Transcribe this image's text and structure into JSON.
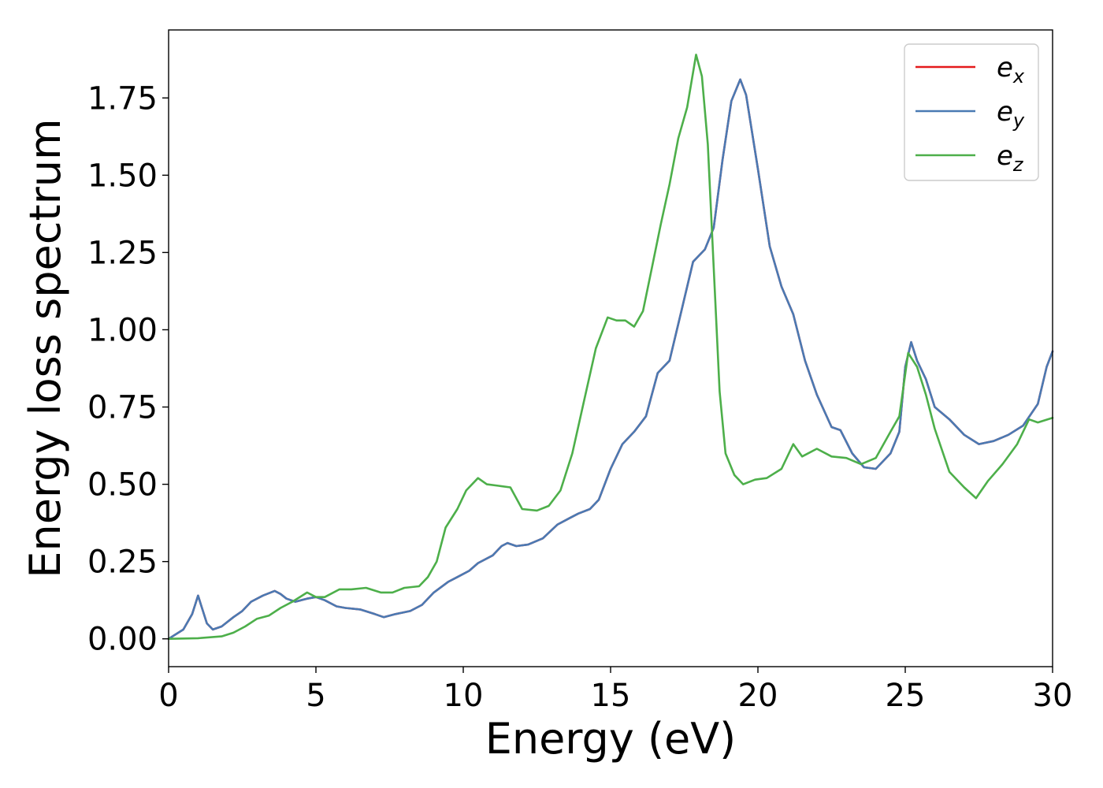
{
  "chart_data": {
    "type": "line",
    "title": "",
    "xlabel": "Energy (eV)",
    "ylabel": "Energy loss spectrum",
    "xlim": [
      0,
      30
    ],
    "ylim": [
      -0.09,
      1.97
    ],
    "xticks": [
      0,
      5,
      10,
      15,
      20,
      25,
      30
    ],
    "xtick_labels": [
      "0",
      "5",
      "10",
      "15",
      "20",
      "25",
      "30"
    ],
    "yticks": [
      0.0,
      0.25,
      0.5,
      0.75,
      1.0,
      1.25,
      1.5,
      1.75
    ],
    "ytick_labels": [
      "0.00",
      "0.25",
      "0.50",
      "0.75",
      "1.00",
      "1.25",
      "1.50",
      "1.75"
    ],
    "grid": false,
    "legend_position": "top-right",
    "series": [
      {
        "name": "e",
        "subscript": "x",
        "color": "#e41a1c",
        "points": [
          [
            0,
            0
          ],
          [
            0.5,
            0.03
          ],
          [
            0.8,
            0.08
          ],
          [
            1.0,
            0.14
          ],
          [
            1.1,
            0.11
          ],
          [
            1.3,
            0.05
          ],
          [
            1.5,
            0.03
          ],
          [
            1.8,
            0.04
          ],
          [
            2.2,
            0.07
          ],
          [
            2.5,
            0.09
          ],
          [
            2.8,
            0.12
          ],
          [
            3.2,
            0.14
          ],
          [
            3.6,
            0.155
          ],
          [
            3.8,
            0.145
          ],
          [
            4.0,
            0.13
          ],
          [
            4.3,
            0.12
          ],
          [
            4.7,
            0.13
          ],
          [
            5.0,
            0.135
          ],
          [
            5.3,
            0.125
          ],
          [
            5.7,
            0.105
          ],
          [
            6.0,
            0.1
          ],
          [
            6.5,
            0.095
          ],
          [
            7.0,
            0.08
          ],
          [
            7.3,
            0.07
          ],
          [
            7.7,
            0.08
          ],
          [
            8.2,
            0.09
          ],
          [
            8.6,
            0.11
          ],
          [
            9.0,
            0.15
          ],
          [
            9.5,
            0.185
          ],
          [
            9.8,
            0.2
          ],
          [
            10.2,
            0.22
          ],
          [
            10.5,
            0.245
          ],
          [
            11.0,
            0.27
          ],
          [
            11.3,
            0.3
          ],
          [
            11.5,
            0.31
          ],
          [
            11.8,
            0.3
          ],
          [
            12.2,
            0.305
          ],
          [
            12.7,
            0.325
          ],
          [
            13.2,
            0.37
          ],
          [
            13.6,
            0.39
          ],
          [
            13.9,
            0.405
          ],
          [
            14.3,
            0.42
          ],
          [
            14.6,
            0.45
          ],
          [
            15.0,
            0.55
          ],
          [
            15.4,
            0.63
          ],
          [
            15.8,
            0.67
          ],
          [
            16.2,
            0.72
          ],
          [
            16.6,
            0.86
          ],
          [
            17.0,
            0.9
          ],
          [
            17.4,
            1.06
          ],
          [
            17.8,
            1.22
          ],
          [
            18.2,
            1.26
          ],
          [
            18.5,
            1.33
          ],
          [
            18.8,
            1.55
          ],
          [
            19.1,
            1.74
          ],
          [
            19.4,
            1.81
          ],
          [
            19.6,
            1.76
          ],
          [
            20.0,
            1.52
          ],
          [
            20.4,
            1.27
          ],
          [
            20.8,
            1.14
          ],
          [
            21.2,
            1.05
          ],
          [
            21.6,
            0.9
          ],
          [
            22.0,
            0.79
          ],
          [
            22.5,
            0.685
          ],
          [
            22.8,
            0.675
          ],
          [
            23.2,
            0.6
          ],
          [
            23.6,
            0.555
          ],
          [
            24.0,
            0.55
          ],
          [
            24.5,
            0.6
          ],
          [
            24.8,
            0.67
          ],
          [
            25.0,
            0.88
          ],
          [
            25.2,
            0.96
          ],
          [
            25.4,
            0.9
          ],
          [
            25.7,
            0.84
          ],
          [
            26.0,
            0.75
          ],
          [
            26.5,
            0.71
          ],
          [
            27.0,
            0.66
          ],
          [
            27.5,
            0.63
          ],
          [
            28.0,
            0.64
          ],
          [
            28.5,
            0.66
          ],
          [
            29.0,
            0.69
          ],
          [
            29.5,
            0.76
          ],
          [
            29.8,
            0.88
          ],
          [
            30.0,
            0.93
          ]
        ]
      },
      {
        "name": "e",
        "subscript": "y",
        "color": "#4a7ab3",
        "points": [
          [
            0,
            0
          ],
          [
            0.5,
            0.03
          ],
          [
            0.8,
            0.08
          ],
          [
            1.0,
            0.14
          ],
          [
            1.1,
            0.11
          ],
          [
            1.3,
            0.05
          ],
          [
            1.5,
            0.03
          ],
          [
            1.8,
            0.04
          ],
          [
            2.2,
            0.07
          ],
          [
            2.5,
            0.09
          ],
          [
            2.8,
            0.12
          ],
          [
            3.2,
            0.14
          ],
          [
            3.6,
            0.155
          ],
          [
            3.8,
            0.145
          ],
          [
            4.0,
            0.13
          ],
          [
            4.3,
            0.12
          ],
          [
            4.7,
            0.13
          ],
          [
            5.0,
            0.135
          ],
          [
            5.3,
            0.125
          ],
          [
            5.7,
            0.105
          ],
          [
            6.0,
            0.1
          ],
          [
            6.5,
            0.095
          ],
          [
            7.0,
            0.08
          ],
          [
            7.3,
            0.07
          ],
          [
            7.7,
            0.08
          ],
          [
            8.2,
            0.09
          ],
          [
            8.6,
            0.11
          ],
          [
            9.0,
            0.15
          ],
          [
            9.5,
            0.185
          ],
          [
            9.8,
            0.2
          ],
          [
            10.2,
            0.22
          ],
          [
            10.5,
            0.245
          ],
          [
            11.0,
            0.27
          ],
          [
            11.3,
            0.3
          ],
          [
            11.5,
            0.31
          ],
          [
            11.8,
            0.3
          ],
          [
            12.2,
            0.305
          ],
          [
            12.7,
            0.325
          ],
          [
            13.2,
            0.37
          ],
          [
            13.6,
            0.39
          ],
          [
            13.9,
            0.405
          ],
          [
            14.3,
            0.42
          ],
          [
            14.6,
            0.45
          ],
          [
            15.0,
            0.55
          ],
          [
            15.4,
            0.63
          ],
          [
            15.8,
            0.67
          ],
          [
            16.2,
            0.72
          ],
          [
            16.6,
            0.86
          ],
          [
            17.0,
            0.9
          ],
          [
            17.4,
            1.06
          ],
          [
            17.8,
            1.22
          ],
          [
            18.2,
            1.26
          ],
          [
            18.5,
            1.33
          ],
          [
            18.8,
            1.55
          ],
          [
            19.1,
            1.74
          ],
          [
            19.4,
            1.81
          ],
          [
            19.6,
            1.76
          ],
          [
            20.0,
            1.52
          ],
          [
            20.4,
            1.27
          ],
          [
            20.8,
            1.14
          ],
          [
            21.2,
            1.05
          ],
          [
            21.6,
            0.9
          ],
          [
            22.0,
            0.79
          ],
          [
            22.5,
            0.685
          ],
          [
            22.8,
            0.675
          ],
          [
            23.2,
            0.6
          ],
          [
            23.6,
            0.555
          ],
          [
            24.0,
            0.55
          ],
          [
            24.5,
            0.6
          ],
          [
            24.8,
            0.67
          ],
          [
            25.0,
            0.88
          ],
          [
            25.2,
            0.96
          ],
          [
            25.4,
            0.9
          ],
          [
            25.7,
            0.84
          ],
          [
            26.0,
            0.75
          ],
          [
            26.5,
            0.71
          ],
          [
            27.0,
            0.66
          ],
          [
            27.5,
            0.63
          ],
          [
            28.0,
            0.64
          ],
          [
            28.5,
            0.66
          ],
          [
            29.0,
            0.69
          ],
          [
            29.5,
            0.76
          ],
          [
            29.8,
            0.88
          ],
          [
            30.0,
            0.93
          ]
        ]
      },
      {
        "name": "e",
        "subscript": "z",
        "color": "#4daf4a",
        "points": [
          [
            0,
            0
          ],
          [
            1.0,
            0.002
          ],
          [
            1.8,
            0.008
          ],
          [
            2.2,
            0.02
          ],
          [
            2.6,
            0.04
          ],
          [
            3.0,
            0.065
          ],
          [
            3.4,
            0.075
          ],
          [
            3.8,
            0.1
          ],
          [
            4.2,
            0.12
          ],
          [
            4.7,
            0.15
          ],
          [
            5.0,
            0.135
          ],
          [
            5.3,
            0.135
          ],
          [
            5.8,
            0.16
          ],
          [
            6.2,
            0.16
          ],
          [
            6.7,
            0.165
          ],
          [
            7.2,
            0.15
          ],
          [
            7.6,
            0.15
          ],
          [
            8.0,
            0.165
          ],
          [
            8.5,
            0.17
          ],
          [
            8.8,
            0.2
          ],
          [
            9.1,
            0.25
          ],
          [
            9.4,
            0.36
          ],
          [
            9.8,
            0.42
          ],
          [
            10.1,
            0.48
          ],
          [
            10.5,
            0.52
          ],
          [
            10.8,
            0.5
          ],
          [
            11.2,
            0.495
          ],
          [
            11.6,
            0.49
          ],
          [
            12.0,
            0.42
          ],
          [
            12.5,
            0.415
          ],
          [
            12.9,
            0.43
          ],
          [
            13.3,
            0.48
          ],
          [
            13.7,
            0.6
          ],
          [
            14.1,
            0.77
          ],
          [
            14.5,
            0.94
          ],
          [
            14.9,
            1.04
          ],
          [
            15.2,
            1.03
          ],
          [
            15.5,
            1.03
          ],
          [
            15.8,
            1.01
          ],
          [
            16.1,
            1.06
          ],
          [
            16.4,
            1.2
          ],
          [
            16.7,
            1.34
          ],
          [
            17.0,
            1.47
          ],
          [
            17.3,
            1.62
          ],
          [
            17.6,
            1.72
          ],
          [
            17.9,
            1.89
          ],
          [
            18.1,
            1.82
          ],
          [
            18.3,
            1.6
          ],
          [
            18.5,
            1.2
          ],
          [
            18.7,
            0.8
          ],
          [
            18.9,
            0.6
          ],
          [
            19.2,
            0.53
          ],
          [
            19.5,
            0.5
          ],
          [
            19.9,
            0.515
          ],
          [
            20.3,
            0.52
          ],
          [
            20.8,
            0.55
          ],
          [
            21.2,
            0.63
          ],
          [
            21.5,
            0.59
          ],
          [
            22.0,
            0.615
          ],
          [
            22.5,
            0.59
          ],
          [
            23.0,
            0.585
          ],
          [
            23.5,
            0.565
          ],
          [
            24.0,
            0.585
          ],
          [
            24.5,
            0.67
          ],
          [
            24.8,
            0.72
          ],
          [
            25.1,
            0.925
          ],
          [
            25.4,
            0.88
          ],
          [
            25.7,
            0.79
          ],
          [
            26.0,
            0.68
          ],
          [
            26.5,
            0.54
          ],
          [
            27.0,
            0.49
          ],
          [
            27.4,
            0.455
          ],
          [
            27.8,
            0.51
          ],
          [
            28.3,
            0.565
          ],
          [
            28.8,
            0.63
          ],
          [
            29.2,
            0.71
          ],
          [
            29.5,
            0.7
          ],
          [
            30.0,
            0.715
          ]
        ]
      }
    ]
  }
}
